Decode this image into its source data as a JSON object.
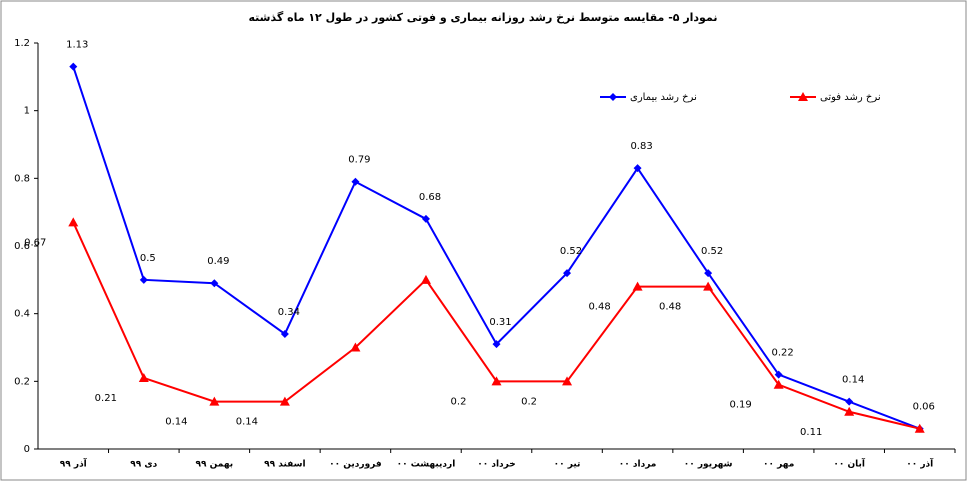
{
  "chart_data": {
    "type": "line",
    "title": "نمودار ۵- مقایسه متوسط نرخ رشد روزانه بیماری و فوتی کشور در  طول ۱۲ ماه گذشته",
    "categories": [
      "آذر ۹۹",
      "دی ۹۹",
      "بهمن ۹۹",
      "اسفند ۹۹",
      "فروردین ۰۰",
      "اردیبهشت ۰۰",
      "خرداد ۰۰",
      "تیر ۰۰",
      "مرداد ۰۰",
      "شهریور ۰۰",
      "مهر ۰۰",
      "آبان ۰۰",
      "آذر ۰۰"
    ],
    "series": [
      {
        "name": "نرخ رشد بیماری",
        "color": "#0000ff",
        "marker": "diamond",
        "values": [
          1.13,
          0.5,
          0.49,
          0.34,
          0.79,
          0.68,
          0.31,
          0.52,
          0.83,
          0.52,
          0.22,
          0.14,
          0.06
        ],
        "value_labels": [
          "1.13",
          "0.5",
          "0.49",
          "0.34",
          "0.79",
          "0.68",
          "0.31",
          "0.52",
          "0.83",
          "0.52",
          "0.22",
          "0.14",
          "0.06"
        ]
      },
      {
        "name": "نرخ رشد فوتی",
        "color": "#ff0000",
        "marker": "triangle",
        "values": [
          0.67,
          0.21,
          0.14,
          0.14,
          0.3,
          0.5,
          0.2,
          0.2,
          0.48,
          0.48,
          0.19,
          0.11,
          0.06
        ],
        "value_labels": [
          "0.67",
          "0.21",
          "0.14",
          "0.14",
          null,
          null,
          "0.2",
          "0.2",
          "0.48",
          "0.48",
          "0.19",
          "0.11",
          null
        ]
      }
    ],
    "ylim": [
      0,
      1.2
    ],
    "yticks": [
      0,
      0.2,
      0.4,
      0.6,
      0.8,
      1,
      1.2
    ],
    "grid": false
  }
}
